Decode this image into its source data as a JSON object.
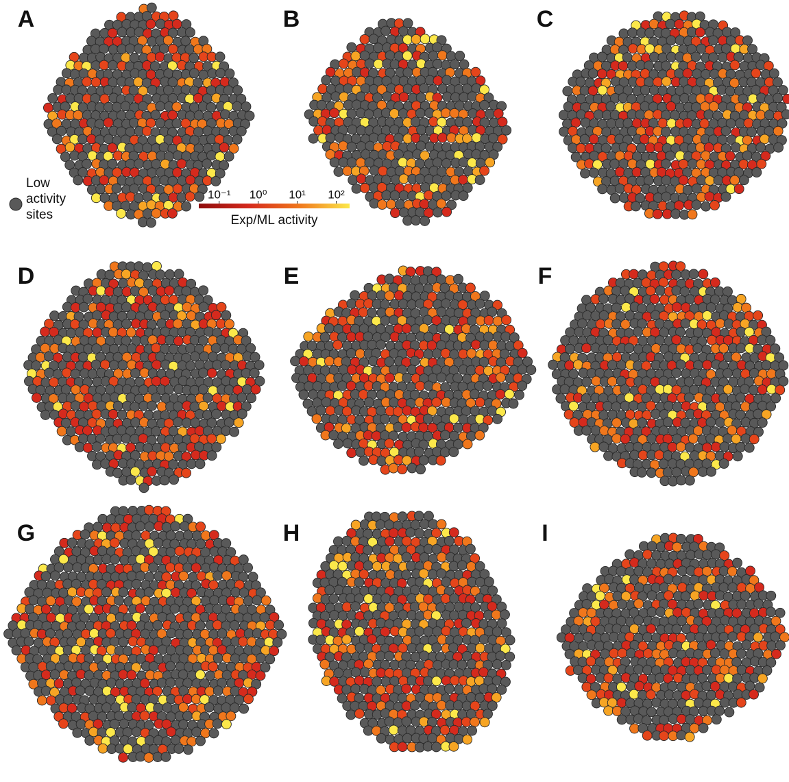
{
  "panels": [
    {
      "label": "A"
    },
    {
      "label": "B"
    },
    {
      "label": "C"
    },
    {
      "label": "D"
    },
    {
      "label": "E"
    },
    {
      "label": "F"
    },
    {
      "label": "G"
    },
    {
      "label": "H"
    },
    {
      "label": "I"
    }
  ],
  "legend": {
    "lines": [
      "Low",
      "activity",
      "sites"
    ],
    "color": "#595959"
  },
  "colorbar": {
    "title": "Exp/ML activity",
    "log": true,
    "clim": [
      0.03,
      220
    ],
    "ticks": [
      {
        "value": 0.1,
        "label": "10⁻¹"
      },
      {
        "value": 1,
        "label": "10⁰"
      },
      {
        "value": 10,
        "label": "10¹"
      },
      {
        "value": 100,
        "label": "10²"
      }
    ],
    "colors": [
      "#8e0c0c",
      "#d52a1d",
      "#f0771c",
      "#fce84a"
    ]
  }
}
